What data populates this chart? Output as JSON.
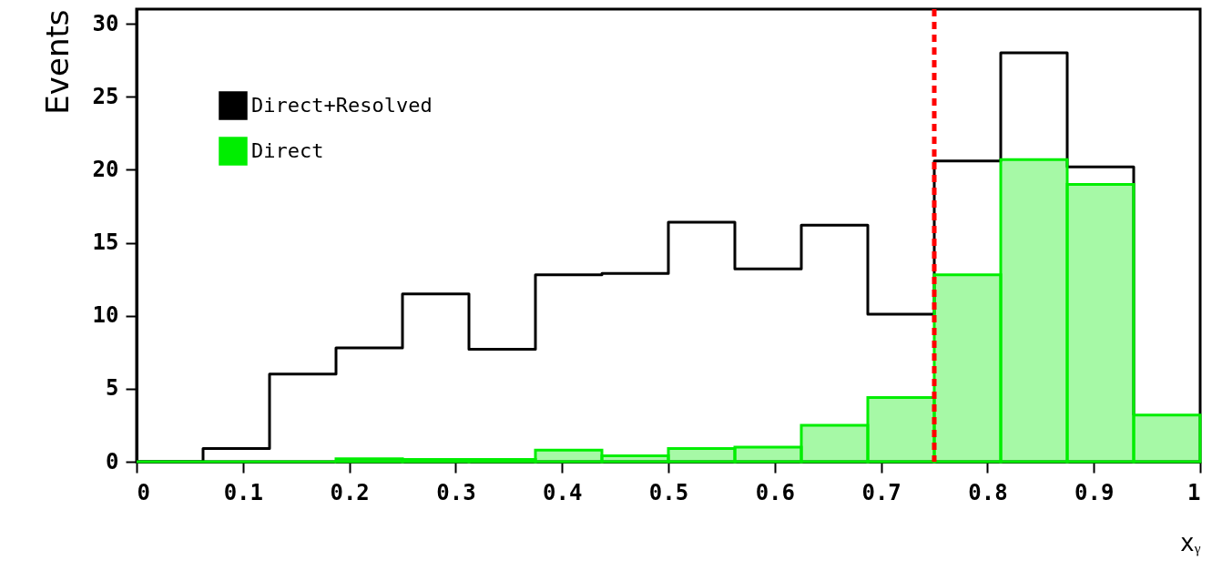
{
  "chart_data": {
    "type": "histogram",
    "xlabel": "xᵧ",
    "ylabel": "Events",
    "bins": [
      0,
      0.0625,
      0.125,
      0.1875,
      0.25,
      0.3125,
      0.375,
      0.4375,
      0.5,
      0.5625,
      0.625,
      0.6875,
      0.75,
      0.8125,
      0.875,
      0.9375,
      1
    ],
    "series": [
      {
        "name": "Direct+Resolved",
        "type": "step",
        "color": "#000000",
        "x": [
          0,
          0.0625,
          0.125,
          0.1875,
          0.25,
          0.3125,
          0.375,
          0.4375,
          0.5,
          0.5625,
          0.625,
          0.6875,
          0.75,
          0.8125,
          0.875,
          0.9375
        ],
        "values": [
          0,
          0.9,
          6,
          7.8,
          11.5,
          7.7,
          12.8,
          12.9,
          16.4,
          13.2,
          16.2,
          10.1,
          20.6,
          28,
          20.2,
          3.2
        ]
      },
      {
        "name": "Direct",
        "color": "#00ee00",
        "values": [
          0,
          0,
          0,
          0.2,
          0.15,
          0.15,
          0.8,
          0.4,
          0.9,
          1.0,
          2.5,
          4.4,
          12.8,
          20.7,
          19,
          3.2
        ]
      }
    ],
    "xlim": [
      0,
      1
    ],
    "ylim": [
      0,
      31
    ],
    "xticks": [
      0,
      0.1,
      0.2,
      0.3,
      0.4,
      0.5,
      0.6,
      0.7,
      0.8,
      0.9,
      1
    ],
    "yticks": [
      0,
      5,
      10,
      15,
      20,
      25,
      30
    ],
    "ref_lines": [
      {
        "axis": "x",
        "value": 0.75,
        "color": "#ff0000",
        "line_style": "dashed"
      }
    ],
    "grid": false,
    "legend": "top left"
  }
}
